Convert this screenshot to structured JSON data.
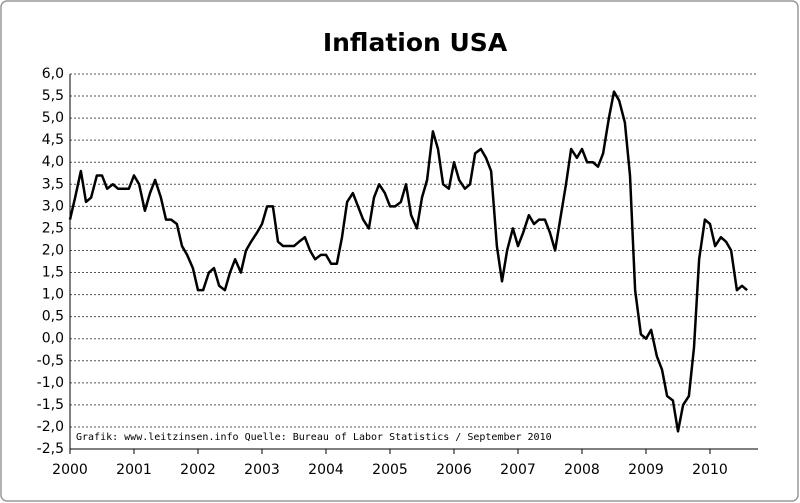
{
  "chart_data": {
    "type": "line",
    "title": "Inflation USA",
    "annotation": "Grafik: www.leitzinsen.info  Quelle: Bureau of Labor Statistics / September 2010",
    "x": [
      2000,
      2000.08,
      2000.17,
      2000.25,
      2000.33,
      2000.42,
      2000.5,
      2000.58,
      2000.67,
      2000.75,
      2000.83,
      2000.92,
      2001,
      2001.08,
      2001.17,
      2001.25,
      2001.33,
      2001.42,
      2001.5,
      2001.58,
      2001.67,
      2001.75,
      2001.83,
      2001.92,
      2002,
      2002.08,
      2002.17,
      2002.25,
      2002.33,
      2002.42,
      2002.5,
      2002.58,
      2002.67,
      2002.75,
      2002.83,
      2002.92,
      2003,
      2003.08,
      2003.17,
      2003.25,
      2003.33,
      2003.42,
      2003.5,
      2003.58,
      2003.67,
      2003.75,
      2003.83,
      2003.92,
      2004,
      2004.08,
      2004.17,
      2004.25,
      2004.33,
      2004.42,
      2004.5,
      2004.58,
      2004.67,
      2004.75,
      2004.83,
      2004.92,
      2005,
      2005.08,
      2005.17,
      2005.25,
      2005.33,
      2005.42,
      2005.5,
      2005.58,
      2005.67,
      2005.75,
      2005.83,
      2005.92,
      2006,
      2006.08,
      2006.17,
      2006.25,
      2006.33,
      2006.42,
      2006.5,
      2006.58,
      2006.67,
      2006.75,
      2006.83,
      2006.92,
      2007,
      2007.08,
      2007.17,
      2007.25,
      2007.33,
      2007.42,
      2007.5,
      2007.58,
      2007.67,
      2007.75,
      2007.83,
      2007.92,
      2008,
      2008.08,
      2008.17,
      2008.25,
      2008.33,
      2008.42,
      2008.5,
      2008.58,
      2008.67,
      2008.75,
      2008.83,
      2008.92,
      2009,
      2009.08,
      2009.17,
      2009.25,
      2009.33,
      2009.42,
      2009.5,
      2009.58,
      2009.67,
      2009.75,
      2009.83,
      2009.92,
      2010,
      2010.08,
      2010.17,
      2010.25,
      2010.33,
      2010.42,
      2010.5,
      2010.58
    ],
    "values": [
      2.7,
      3.2,
      3.8,
      3.1,
      3.2,
      3.7,
      3.7,
      3.4,
      3.5,
      3.4,
      3.4,
      3.4,
      3.7,
      3.5,
      2.9,
      3.3,
      3.6,
      3.2,
      2.7,
      2.7,
      2.6,
      2.1,
      1.9,
      1.6,
      1.1,
      1.1,
      1.5,
      1.6,
      1.2,
      1.1,
      1.5,
      1.8,
      1.5,
      2.0,
      2.2,
      2.4,
      2.6,
      3.0,
      3.0,
      2.2,
      2.1,
      2.1,
      2.1,
      2.2,
      2.3,
      2.0,
      1.8,
      1.9,
      1.9,
      1.7,
      1.7,
      2.3,
      3.1,
      3.3,
      3.0,
      2.7,
      2.5,
      3.2,
      3.5,
      3.3,
      3.0,
      3.0,
      3.1,
      3.5,
      2.8,
      2.5,
      3.2,
      3.6,
      4.7,
      4.3,
      3.5,
      3.4,
      4.0,
      3.6,
      3.4,
      3.5,
      4.2,
      4.3,
      4.1,
      3.8,
      2.1,
      1.3,
      2.0,
      2.5,
      2.1,
      2.4,
      2.8,
      2.6,
      2.7,
      2.7,
      2.4,
      2.0,
      2.8,
      3.5,
      4.3,
      4.1,
      4.3,
      4.0,
      4.0,
      3.9,
      4.2,
      5.0,
      5.6,
      5.4,
      4.9,
      3.7,
      1.1,
      0.1,
      0.0,
      0.2,
      -0.4,
      -0.7,
      -1.3,
      -1.4,
      -2.1,
      -1.5,
      -1.3,
      -0.2,
      1.8,
      2.7,
      2.6,
      2.1,
      2.3,
      2.2,
      2.0,
      1.1,
      1.2,
      1.1
    ],
    "color": "#000000",
    "xlim": [
      2000,
      2010.75
    ],
    "xticks": [
      2000,
      2001,
      2002,
      2003,
      2004,
      2005,
      2006,
      2007,
      2008,
      2009,
      2010
    ],
    "ylim": [
      -2.5,
      6
    ],
    "yticks": [
      {
        "value": 6,
        "label": "6,0"
      },
      {
        "value": 5.5,
        "label": "5,5"
      },
      {
        "value": 5,
        "label": "5,0"
      },
      {
        "value": 4.5,
        "label": "4,5"
      },
      {
        "value": 4,
        "label": "4,0"
      },
      {
        "value": 3.5,
        "label": "3,5"
      },
      {
        "value": 3,
        "label": "3,0"
      },
      {
        "value": 2.5,
        "label": "2,5"
      },
      {
        "value": 2,
        "label": "2,0"
      },
      {
        "value": 1.5,
        "label": "1,5"
      },
      {
        "value": 1,
        "label": "1,0"
      },
      {
        "value": 0.5,
        "label": "0,5"
      },
      {
        "value": 0,
        "label": "0,0"
      },
      {
        "value": -0.5,
        "label": "-0,5"
      },
      {
        "value": -1,
        "label": "-1,0"
      },
      {
        "value": -1.5,
        "label": "-1,5"
      },
      {
        "value": -2,
        "label": "-2,0"
      },
      {
        "value": -2.5,
        "label": "-2,5"
      }
    ],
    "grid": true
  }
}
